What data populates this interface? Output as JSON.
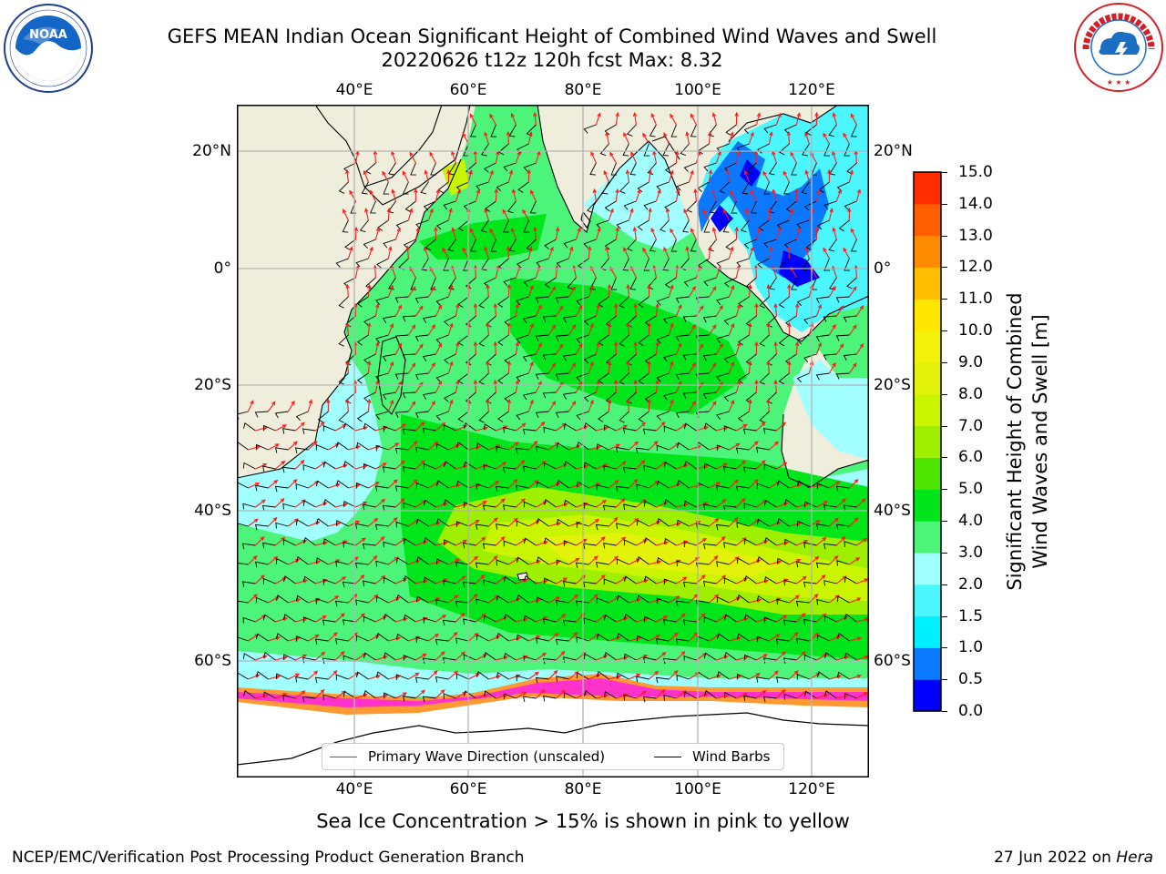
{
  "title": {
    "line1": "GEFS MEAN Indian Ocean Significant Height of Combined Wind Waves and Swell",
    "line2": "20220626 t12z 120h fcst   Max: 8.32"
  },
  "map": {
    "lon_ticks": [
      "40°E",
      "60°E",
      "80°E",
      "100°E",
      "120°E"
    ],
    "lon_values": [
      40,
      60,
      80,
      100,
      120
    ],
    "lat_ticks": [
      "20°N",
      "0°",
      "20°S",
      "40°S",
      "60°S"
    ],
    "lat_values": [
      20,
      0,
      -20,
      -40,
      -60
    ],
    "extent": {
      "lon_min": 20,
      "lon_max": 130,
      "lat_min": -75,
      "lat_max": 28
    },
    "colors": {
      "land": "#efeedc",
      "ocean_moderate": "#4cf57a",
      "ocean_rough": "#00e61a",
      "ice": "#ffffff",
      "gridline": "#b3b3b3"
    }
  },
  "colorbar": {
    "title_line1": "Significant Height of Combined",
    "title_line2": "Wind Waves and Swell [m]",
    "levels": [
      "0.0",
      "0.5",
      "1.0",
      "1.5",
      "2.0",
      "3.0",
      "4.0",
      "5.0",
      "6.0",
      "7.0",
      "8.0",
      "9.0",
      "10.0",
      "11.0",
      "12.0",
      "13.0",
      "14.0",
      "15.0"
    ],
    "colors": [
      "#0000ff",
      "#0a78ff",
      "#00f0ff",
      "#4cf6ff",
      "#a2ffff",
      "#4cf57a",
      "#00e61a",
      "#4ee600",
      "#9ef000",
      "#c9f500",
      "#e2f20a",
      "#f2f20a",
      "#ffe600",
      "#ffbe00",
      "#ff8c00",
      "#ff5f00",
      "#ff2d00",
      "#ff0000"
    ]
  },
  "legend": {
    "wave_direction": "Primary Wave Direction (unscaled)",
    "wind_barbs": "Wind Barbs",
    "wave_color": "#ff1a1a",
    "barb_color": "#000000"
  },
  "footer": {
    "note": "Sea Ice Concentration > 15% is shown in pink to yellow",
    "credit": "NCEP/EMC/Verification Post Processing Product Generation Branch",
    "date": "27 Jun 2022 on",
    "host": "Hera"
  },
  "logos": {
    "noaa_text": "NOAA",
    "noaa_ring_text": "NATIONAL OCEANIC AND ATMOSPHERIC ADMINISTRATION · U.S. DEPARTMENT OF COMMERCE",
    "nws_ring_text": "NATIONAL WEATHER SERVICE"
  }
}
